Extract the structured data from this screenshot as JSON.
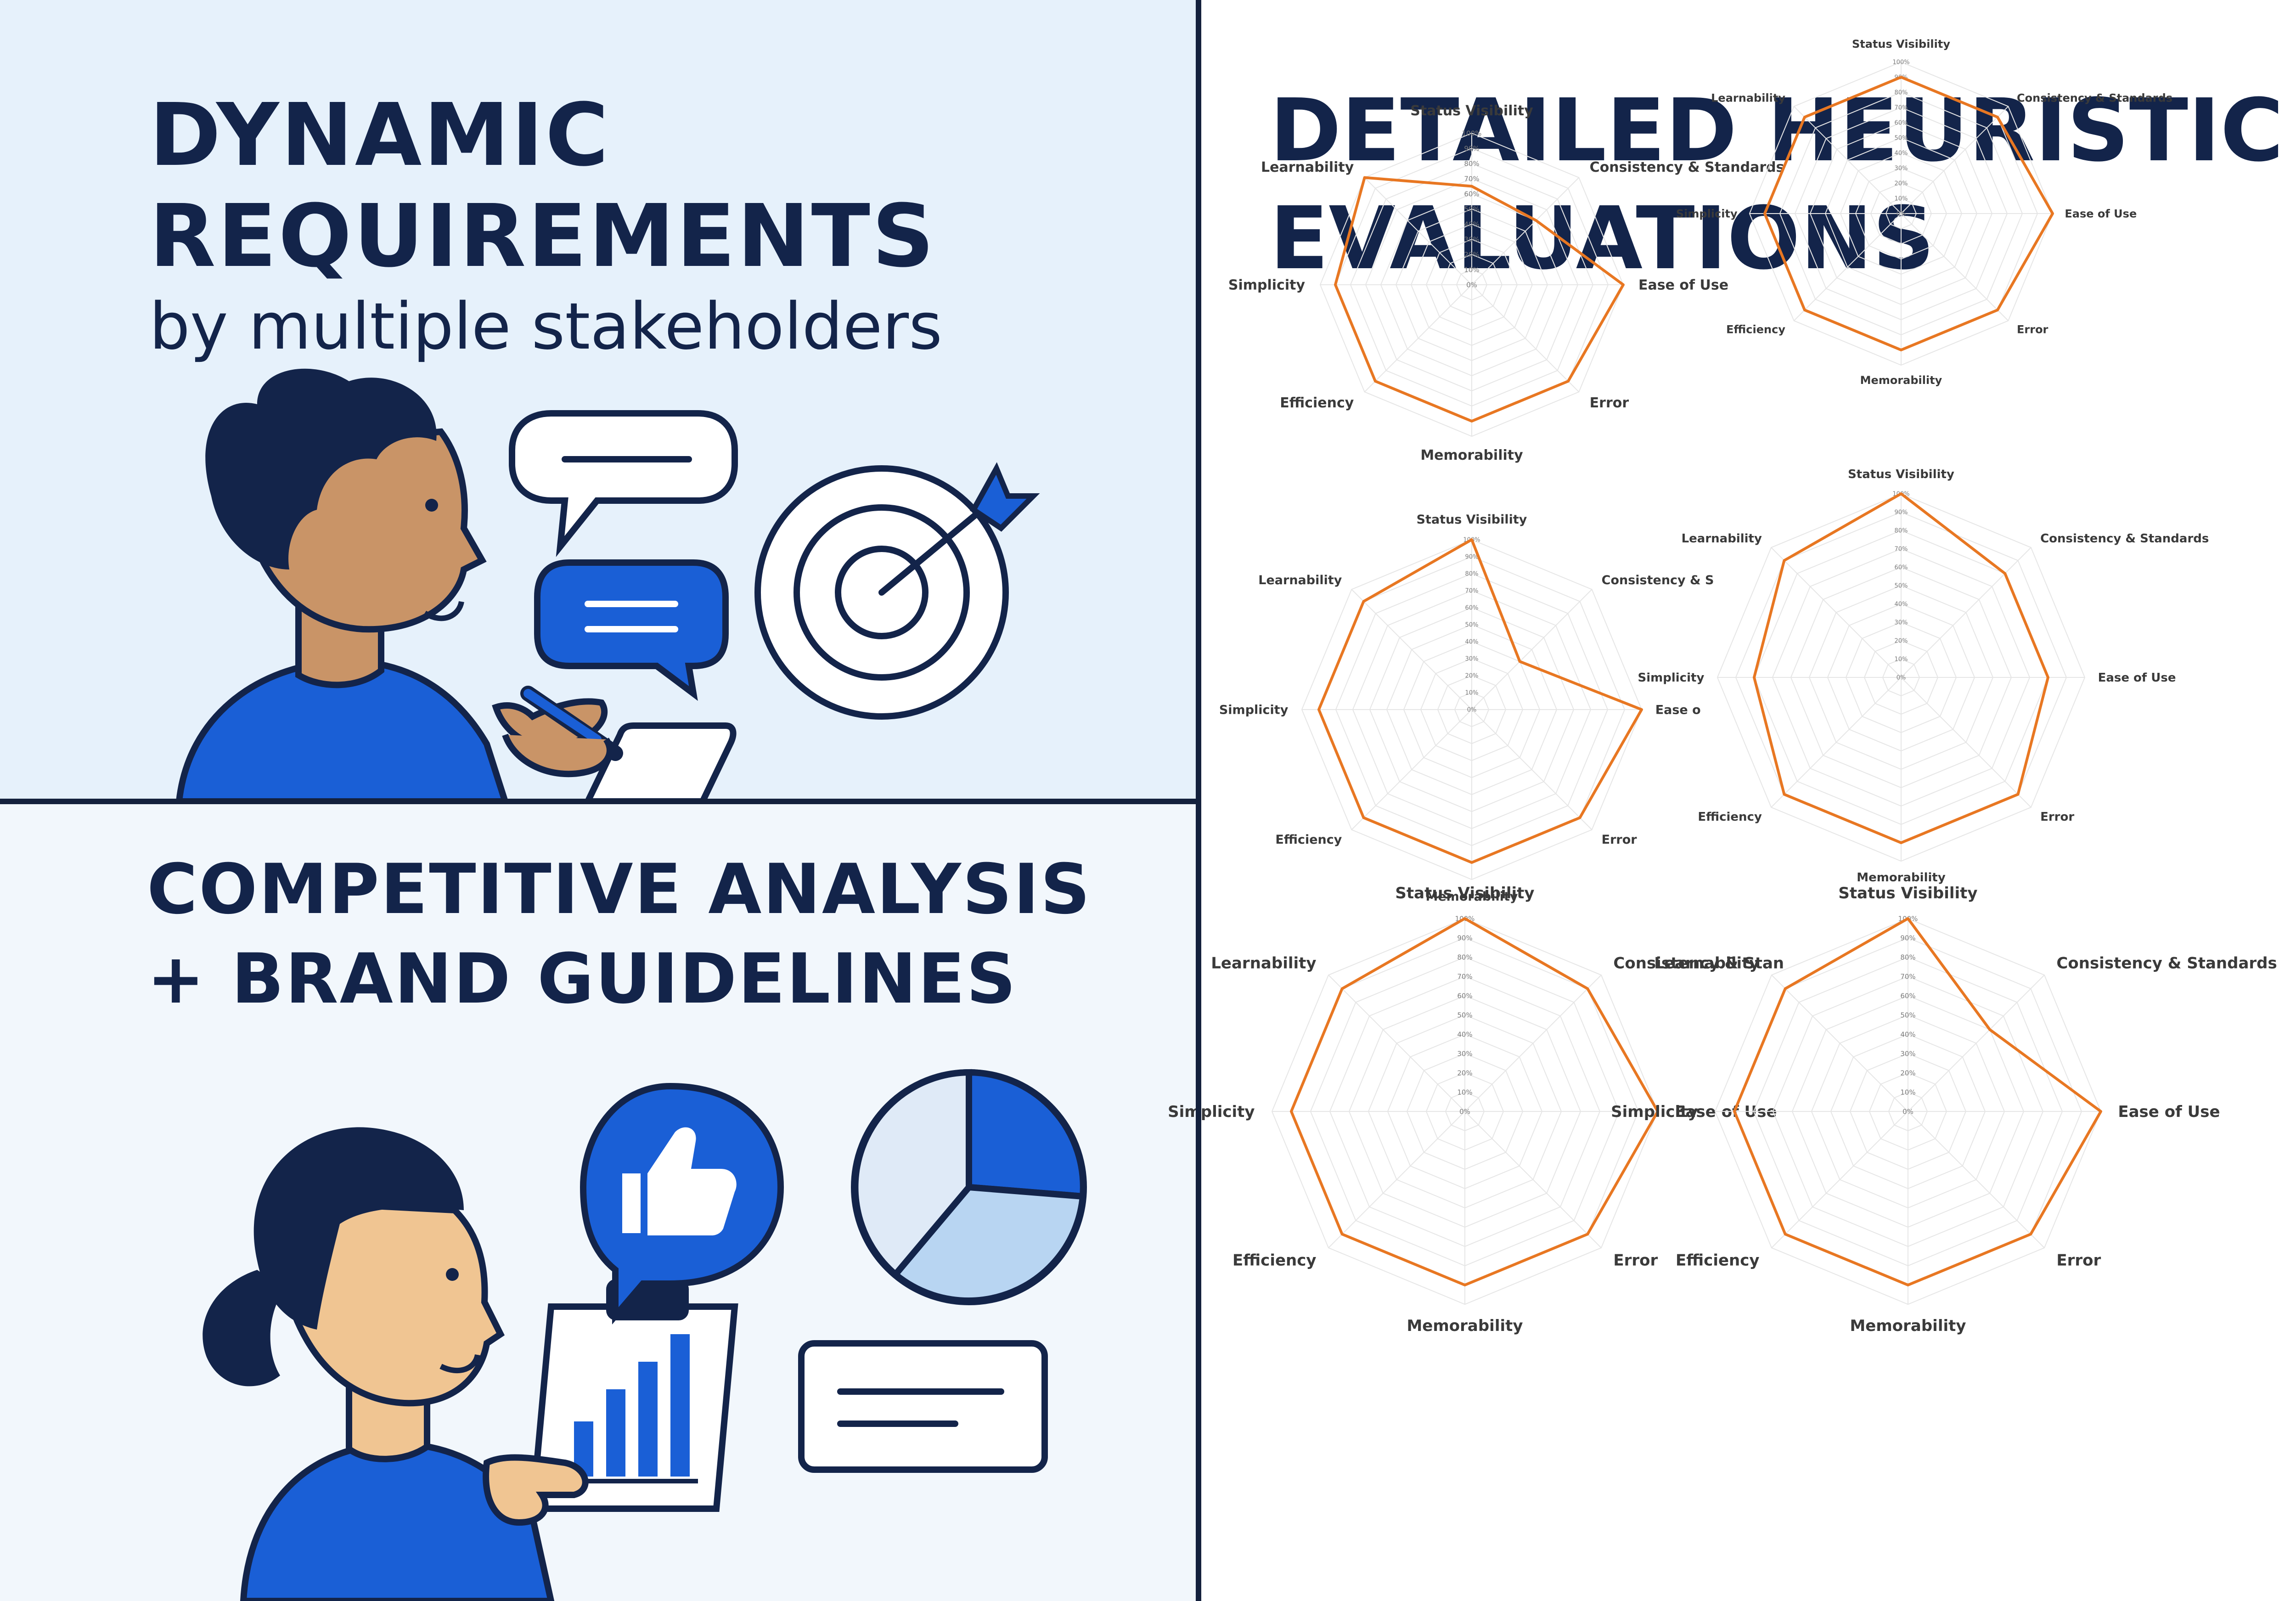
{
  "panels": {
    "top_left": {
      "title_line1": "DYNAMIC",
      "title_line2": "REQUIREMENTS",
      "subtitle": "by multiple stakeholders"
    },
    "bottom_left": {
      "title_line1": "COMPETITIVE ANALYSIS",
      "title_line2": "+ BRAND GUIDELINES"
    },
    "right": {
      "title_line1": "DETAILED HEURISTIC",
      "title_line2": "EVALUATIONS"
    }
  },
  "colors": {
    "navy": "#13244a",
    "blue": "#1a5fd6",
    "light_blue": "#b8d5f2",
    "skin": "#c99467",
    "skin_light": "#f0c592",
    "series": "#e87722",
    "grid": "#e6e6e6"
  },
  "icons": [
    "speech-bubble-icon",
    "chat-bubble-icon",
    "target-icon",
    "thumbs-up-icon",
    "pie-chart-icon",
    "clipboard-bar-chart-icon",
    "text-card-icon"
  ],
  "chart_data": [
    {
      "type": "radar",
      "axes": [
        "Status Visibility",
        "Consistency & Standards",
        "Ease of Use",
        "Error",
        "Memorability",
        "Efficiency",
        "Simplicity",
        "Learnability"
      ],
      "ticks": [
        "0%",
        "10%",
        "20%",
        "30%",
        "40%",
        "50%",
        "60%",
        "70%",
        "80%",
        "90%",
        "100%"
      ],
      "rlim": [
        0,
        100
      ],
      "values": [
        65,
        60,
        100,
        90,
        90,
        90,
        90,
        100
      ]
    },
    {
      "type": "radar",
      "axes": [
        "Status Visibility",
        "Consistency & Standards",
        "Ease of Use",
        "Error",
        "Memorability",
        "Efficiency",
        "Simplicity",
        "Learnability"
      ],
      "ticks": [
        "0%",
        "10%",
        "20%",
        "30%",
        "40%",
        "50%",
        "60%",
        "70%",
        "80%",
        "90%",
        "100%"
      ],
      "rlim": [
        0,
        100
      ],
      "values": [
        90,
        90,
        100,
        90,
        90,
        90,
        90,
        90
      ]
    },
    {
      "type": "radar",
      "axes": [
        "Status Visibility",
        "Consistency & S",
        "Ease o",
        "Error",
        "Memorability",
        "Efficiency",
        "Simplicity",
        "Learnability"
      ],
      "ticks": [
        "0%",
        "10%",
        "20%",
        "30%",
        "40%",
        "50%",
        "60%",
        "70%",
        "80%",
        "90%",
        "100%"
      ],
      "rlim": [
        0,
        100
      ],
      "values": [
        100,
        40,
        100,
        90,
        90,
        90,
        90,
        90
      ]
    },
    {
      "type": "radar",
      "axes": [
        "Status Visibility",
        "Consistency & Standards",
        "Ease of Use",
        "Error",
        "Memorability",
        "Efficiency",
        "Simplicity",
        "Learnability"
      ],
      "ticks": [
        "0%",
        "10%",
        "20%",
        "30%",
        "40%",
        "50%",
        "60%",
        "70%",
        "80%",
        "90%",
        "100%"
      ],
      "rlim": [
        0,
        100
      ],
      "values": [
        100,
        80,
        80,
        90,
        90,
        90,
        80,
        90
      ]
    },
    {
      "type": "radar",
      "axes": [
        "Status Visibility",
        "Consistency & Stan",
        "Ease of Use",
        "Error",
        "Memorability",
        "Efficiency",
        "Simplicity",
        "Learnability"
      ],
      "ticks": [
        "0%",
        "10%",
        "20%",
        "30%",
        "40%",
        "50%",
        "60%",
        "70%",
        "80%",
        "90%",
        "100%"
      ],
      "rlim": [
        0,
        100
      ],
      "values": [
        100,
        90,
        100,
        90,
        90,
        90,
        90,
        90
      ]
    },
    {
      "type": "radar",
      "axes": [
        "Status Visibility",
        "Consistency & Standards",
        "Ease of Use",
        "Error",
        "Memorability",
        "Efficiency",
        "Simplicity",
        "Learnability"
      ],
      "ticks": [
        "0%",
        "10%",
        "20%",
        "30%",
        "40%",
        "50%",
        "60%",
        "70%",
        "80%",
        "90%",
        "100%"
      ],
      "rlim": [
        0,
        100
      ],
      "values": [
        100,
        60,
        100,
        90,
        90,
        90,
        90,
        90
      ]
    }
  ]
}
